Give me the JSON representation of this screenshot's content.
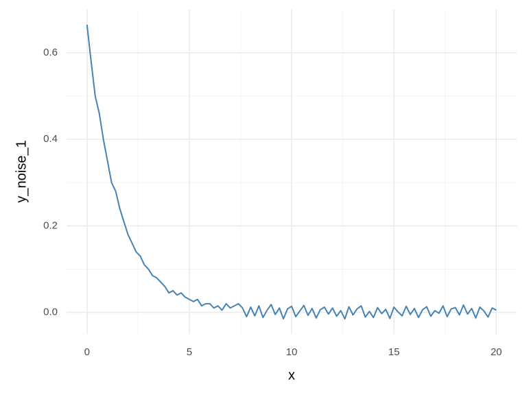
{
  "chart_data": {
    "type": "line",
    "x_label": "x",
    "y_label": "y_noise_1",
    "x": [
      0,
      0.2,
      0.4,
      0.6,
      0.8,
      1,
      1.2,
      1.4,
      1.6,
      1.8,
      2,
      2.2,
      2.4,
      2.6,
      2.8,
      3,
      3.2,
      3.4,
      3.6,
      3.8,
      4,
      4.2,
      4.4,
      4.6,
      4.8,
      5,
      5.2,
      5.4,
      5.6,
      5.8,
      6,
      6.2,
      6.4,
      6.6,
      6.8,
      7,
      7.2,
      7.4,
      7.6,
      7.8,
      8,
      8.2,
      8.4,
      8.6,
      8.8,
      9,
      9.2,
      9.4,
      9.6,
      9.8,
      10,
      10.2,
      10.4,
      10.6,
      10.8,
      11,
      11.2,
      11.4,
      11.6,
      11.8,
      12,
      12.2,
      12.4,
      12.6,
      12.8,
      13,
      13.2,
      13.4,
      13.6,
      13.8,
      14,
      14.2,
      14.4,
      14.6,
      14.8,
      15,
      15.2,
      15.4,
      15.6,
      15.8,
      16,
      16.2,
      16.4,
      16.6,
      16.8,
      17,
      17.2,
      17.4,
      17.6,
      17.8,
      18,
      18.2,
      18.4,
      18.6,
      18.8,
      19,
      19.2,
      19.4,
      19.6,
      19.8,
      20
    ],
    "values": [
      0.665,
      0.58,
      0.5,
      0.46,
      0.4,
      0.35,
      0.3,
      0.28,
      0.24,
      0.21,
      0.18,
      0.16,
      0.14,
      0.13,
      0.11,
      0.1,
      0.085,
      0.08,
      0.07,
      0.06,
      0.045,
      0.05,
      0.04,
      0.045,
      0.035,
      0.03,
      0.025,
      0.03,
      0.015,
      0.02,
      0.02,
      0.01,
      0.015,
      0.005,
      0.02,
      0.01,
      0.015,
      0.02,
      0.01,
      -0.01,
      0.012,
      -0.008,
      0.015,
      -0.012,
      0.005,
      0.018,
      -0.005,
      0.01,
      -0.015,
      0.008,
      0.014,
      -0.01,
      0.003,
      0.016,
      -0.007,
      0.009,
      -0.013,
      0.006,
      0.012,
      -0.004,
      0.01,
      -0.009,
      0.004,
      -0.015,
      0.013,
      -0.006,
      0.008,
      0.015,
      -0.011,
      0.002,
      -0.012,
      0.011,
      -0.003,
      0.007,
      -0.014,
      0.012,
      0.001,
      -0.008,
      0.014,
      -0.005,
      0.009,
      -0.012,
      0.006,
      0.013,
      -0.009,
      0.004,
      -0.002,
      0.015,
      -0.01,
      0.008,
      0.011,
      -0.006,
      0.017,
      -0.004,
      0.009,
      -0.013,
      0.012,
      0.003,
      -0.011,
      0.01,
      0.005
    ],
    "color": "#4682b4",
    "xlim": [
      -1,
      21
    ],
    "ylim": [
      -0.05,
      0.7
    ],
    "xticks": [
      0,
      5,
      10,
      15,
      20
    ],
    "yticks": [
      {
        "value": 0,
        "label": "0.0"
      },
      0.2,
      0.4,
      0.6
    ],
    "x_minor_grid": [
      2.5,
      7.5,
      12.5,
      17.5
    ],
    "y_minor_grid": [
      0.1,
      0.3,
      0.5
    ],
    "grid": true
  }
}
